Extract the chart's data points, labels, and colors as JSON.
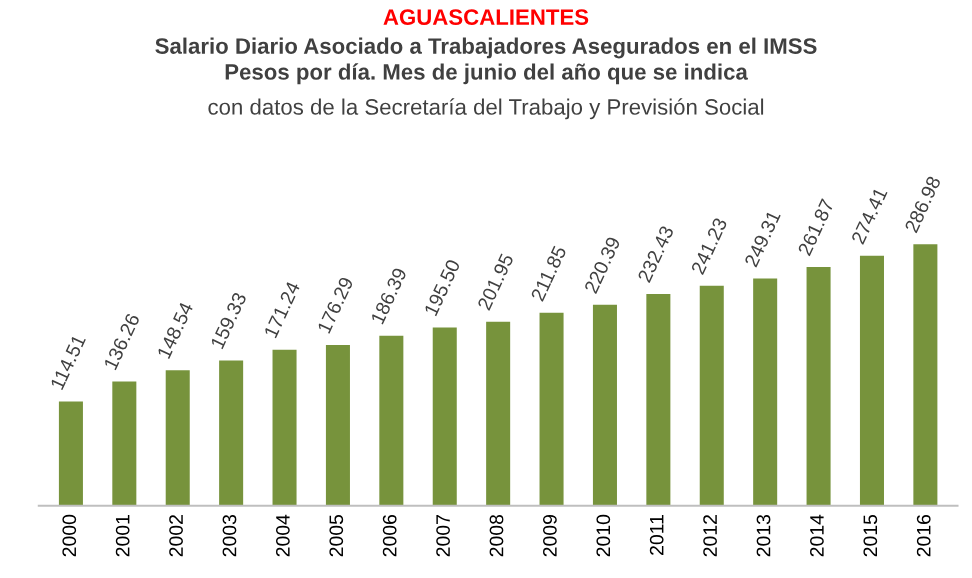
{
  "chart_data": {
    "type": "bar",
    "title": "AGUASCALIENTES",
    "subtitle": "Salario Diario Asociado a Trabajadores Asegurados en el IMSS\nPesos por día. Mes de junio del año que se indica",
    "annotations": [
      "con datos de la Secretaría del Trabajo y Previsión Social"
    ],
    "categories": [
      "2000",
      "2001",
      "2002",
      "2003",
      "2004",
      "2005",
      "2006",
      "2007",
      "2008",
      "2009",
      "2010",
      "2011",
      "2012",
      "2013",
      "2014",
      "2015",
      "2016"
    ],
    "values": [
      114.51,
      136.26,
      148.54,
      159.33,
      171.24,
      176.29,
      186.39,
      195.5,
      201.95,
      211.85,
      220.39,
      232.43,
      241.23,
      249.31,
      261.87,
      274.41,
      286.98
    ],
    "value_labels": [
      "114.51",
      "136.26",
      "148.54",
      "159.33",
      "171.24",
      "176.29",
      "186.39",
      "195.50",
      "201.95",
      "211.85",
      "220.39",
      "232.43",
      "241.23",
      "249.31",
      "261.87",
      "274.41",
      "286.98"
    ],
    "color": "#77933c",
    "grid": false,
    "legend": false
  }
}
